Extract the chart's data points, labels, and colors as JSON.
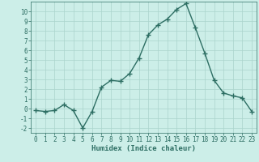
{
  "x": [
    0,
    1,
    2,
    3,
    4,
    5,
    6,
    7,
    8,
    9,
    10,
    11,
    12,
    13,
    14,
    15,
    16,
    17,
    18,
    19,
    20,
    21,
    22,
    23
  ],
  "y": [
    -0.2,
    -0.3,
    -0.2,
    0.4,
    -0.2,
    -2.0,
    -0.3,
    2.2,
    2.9,
    2.8,
    3.6,
    5.2,
    7.6,
    8.6,
    9.2,
    10.2,
    10.8,
    8.3,
    5.7,
    2.9,
    1.6,
    1.3,
    1.1,
    -0.3
  ],
  "line_color": "#2d6e63",
  "marker": "+",
  "marker_size": 4,
  "linewidth": 1.0,
  "xlabel": "Humidex (Indice chaleur)",
  "xlim": [
    -0.5,
    23.5
  ],
  "ylim": [
    -2.5,
    11.0
  ],
  "yticks": [
    -2,
    -1,
    0,
    1,
    2,
    3,
    4,
    5,
    6,
    7,
    8,
    9,
    10
  ],
  "xtick_labels": [
    "0",
    "1",
    "2",
    "3",
    "4",
    "5",
    "6",
    "7",
    "8",
    "9",
    "10",
    "11",
    "12",
    "13",
    "14",
    "15",
    "16",
    "17",
    "18",
    "19",
    "20",
    "21",
    "22",
    "23"
  ],
  "bg_color": "#cceee8",
  "grid_color": "#aad4cc",
  "font_color": "#2d6e63",
  "xlabel_fontsize": 6.5,
  "tick_fontsize": 5.5
}
